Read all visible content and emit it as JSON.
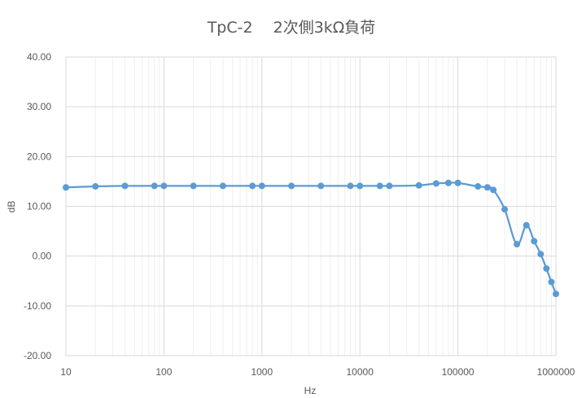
{
  "chart_data": {
    "type": "line",
    "title": "TpC-2　 2次側3kΩ負荷",
    "xlabel": "Hz",
    "ylabel": "dB",
    "x_scale": "log",
    "xlim": [
      10,
      1000000
    ],
    "ylim": [
      -20,
      40
    ],
    "x_tick_labels": [
      "10",
      "100",
      "1000",
      "10000",
      "100000",
      "1000000"
    ],
    "y_tick_labels": [
      "-20.00",
      "-10.00",
      "0.00",
      "10.00",
      "20.00",
      "30.00",
      "40.00"
    ],
    "grid": true,
    "legend": "none",
    "series": [
      {
        "color": "#5b9bd5",
        "points": [
          {
            "x": 10,
            "y": 13.8
          },
          {
            "x": 20,
            "y": 14.0
          },
          {
            "x": 40,
            "y": 14.1
          },
          {
            "x": 80,
            "y": 14.1
          },
          {
            "x": 100,
            "y": 14.1
          },
          {
            "x": 200,
            "y": 14.1
          },
          {
            "x": 400,
            "y": 14.1
          },
          {
            "x": 800,
            "y": 14.1
          },
          {
            "x": 1000,
            "y": 14.1
          },
          {
            "x": 2000,
            "y": 14.1
          },
          {
            "x": 4000,
            "y": 14.1
          },
          {
            "x": 8000,
            "y": 14.1
          },
          {
            "x": 10000,
            "y": 14.1
          },
          {
            "x": 16000,
            "y": 14.1
          },
          {
            "x": 20000,
            "y": 14.1
          },
          {
            "x": 40000,
            "y": 14.2
          },
          {
            "x": 60000,
            "y": 14.6
          },
          {
            "x": 80000,
            "y": 14.7
          },
          {
            "x": 100000,
            "y": 14.7
          },
          {
            "x": 160000,
            "y": 14.0
          },
          {
            "x": 200000,
            "y": 13.8
          },
          {
            "x": 230000,
            "y": 13.3
          },
          {
            "x": 300000,
            "y": 9.4
          },
          {
            "x": 400000,
            "y": 2.4
          },
          {
            "x": 500000,
            "y": 6.2
          },
          {
            "x": 600000,
            "y": 3.0
          },
          {
            "x": 700000,
            "y": 0.4
          },
          {
            "x": 800000,
            "y": -2.5
          },
          {
            "x": 900000,
            "y": -5.2
          },
          {
            "x": 1000000,
            "y": -7.6
          }
        ]
      }
    ]
  }
}
